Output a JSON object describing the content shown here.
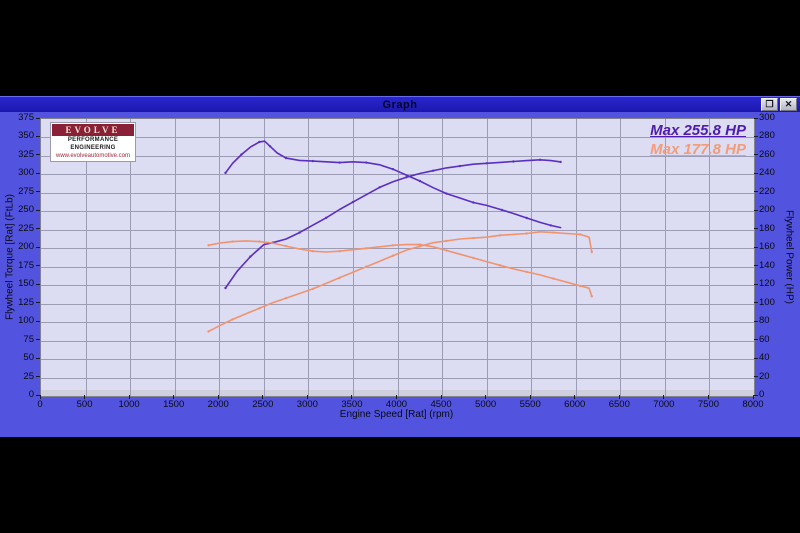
{
  "window": {
    "title": "Graph",
    "icons": {
      "restore": "❐",
      "close": "✕"
    }
  },
  "logo": {
    "brand": "EVOLVE",
    "line1": "PERFORMANCE ENGINEERING",
    "line2": "www.evolveautomotive.com"
  },
  "colors": {
    "titlebar": "#1a17ae",
    "body_bg": "#5254df",
    "plot_bg": "#dcdcf2",
    "grid": "#9c9cb4",
    "purple": "#5b2fc0",
    "orange": "#f09470",
    "legend_purple": "#4f1dae",
    "legend_orange": "#f49c79",
    "logo_maroon": "#8a2038"
  },
  "chart_data": {
    "type": "line",
    "title": "Graph",
    "xlabel": "Engine Speed [Rat] (rpm)",
    "ylabel_left": "Flywheel Torque [Rat] (FtLb)",
    "ylabel_right": "Flywheel Power (HP)",
    "x_range": [
      0,
      8000
    ],
    "y_left_range": [
      0,
      375
    ],
    "y_right_range": [
      0,
      300
    ],
    "grid": true,
    "x_ticks": [
      0,
      500,
      1000,
      1500,
      2000,
      2500,
      3000,
      3500,
      4000,
      4500,
      5000,
      5500,
      6000,
      6500,
      7000,
      7500,
      8000
    ],
    "y_left_ticks": [
      0,
      25,
      50,
      75,
      100,
      125,
      150,
      175,
      200,
      225,
      250,
      275,
      300,
      325,
      350,
      375
    ],
    "y_right_ticks": [
      0,
      20,
      40,
      60,
      80,
      100,
      120,
      140,
      160,
      180,
      200,
      220,
      240,
      260,
      280,
      300
    ],
    "legend": [
      {
        "label": "Max 255.8 HP",
        "color": "#4f1dae"
      },
      {
        "label": "Max 177.8 HP",
        "color": "#f49c79"
      }
    ],
    "series": [
      {
        "name": "run1-torque",
        "axis": "left",
        "color": "#5b2fc0",
        "markers": true,
        "points": [
          [
            2070,
            302
          ],
          [
            2150,
            315
          ],
          [
            2250,
            327
          ],
          [
            2350,
            337
          ],
          [
            2450,
            344
          ],
          [
            2510,
            345
          ],
          [
            2570,
            338
          ],
          [
            2650,
            329
          ],
          [
            2750,
            322
          ],
          [
            2900,
            319
          ],
          [
            3050,
            318
          ],
          [
            3200,
            317
          ],
          [
            3350,
            316
          ],
          [
            3500,
            317
          ],
          [
            3650,
            316
          ],
          [
            3800,
            313
          ],
          [
            3950,
            307
          ],
          [
            4100,
            299
          ],
          [
            4250,
            291
          ],
          [
            4400,
            282
          ],
          [
            4550,
            274
          ],
          [
            4700,
            268
          ],
          [
            4850,
            262
          ],
          [
            5000,
            258
          ],
          [
            5170,
            252
          ],
          [
            5300,
            247
          ],
          [
            5450,
            241
          ],
          [
            5600,
            235
          ],
          [
            5720,
            231
          ],
          [
            5830,
            228
          ]
        ]
      },
      {
        "name": "run1-power",
        "axis": "right",
        "color": "#5b2fc0",
        "markers": true,
        "points": [
          [
            2070,
            117
          ],
          [
            2200,
            135
          ],
          [
            2350,
            151
          ],
          [
            2500,
            164
          ],
          [
            2600,
            166
          ],
          [
            2750,
            170
          ],
          [
            2900,
            177
          ],
          [
            3050,
            185
          ],
          [
            3200,
            193
          ],
          [
            3350,
            202
          ],
          [
            3500,
            210
          ],
          [
            3650,
            218
          ],
          [
            3800,
            226
          ],
          [
            3950,
            232
          ],
          [
            4100,
            237
          ],
          [
            4250,
            241
          ],
          [
            4400,
            244
          ],
          [
            4550,
            247
          ],
          [
            4700,
            249
          ],
          [
            4850,
            251
          ],
          [
            5000,
            252
          ],
          [
            5150,
            253
          ],
          [
            5300,
            254
          ],
          [
            5450,
            255
          ],
          [
            5600,
            255.8
          ],
          [
            5720,
            255
          ],
          [
            5830,
            253.5
          ]
        ]
      },
      {
        "name": "run2-torque",
        "axis": "left",
        "color": "#f09470",
        "markers": true,
        "points": [
          [
            1880,
            204
          ],
          [
            2000,
            207
          ],
          [
            2150,
            209
          ],
          [
            2300,
            210
          ],
          [
            2450,
            209
          ],
          [
            2600,
            207
          ],
          [
            2750,
            203
          ],
          [
            2900,
            199
          ],
          [
            3050,
            196
          ],
          [
            3200,
            195
          ],
          [
            3350,
            196
          ],
          [
            3500,
            198
          ],
          [
            3650,
            200
          ],
          [
            3800,
            202
          ],
          [
            3950,
            204
          ],
          [
            4100,
            205
          ],
          [
            4250,
            205
          ],
          [
            4400,
            202
          ],
          [
            4550,
            197
          ],
          [
            4700,
            192
          ],
          [
            4850,
            187
          ],
          [
            5000,
            182
          ],
          [
            5150,
            177
          ],
          [
            5300,
            172
          ],
          [
            5450,
            168
          ],
          [
            5600,
            164
          ],
          [
            5750,
            159
          ],
          [
            5900,
            154
          ],
          [
            6050,
            149
          ],
          [
            6150,
            146
          ],
          [
            6180,
            135
          ]
        ]
      },
      {
        "name": "run2-power",
        "axis": "right",
        "color": "#f09470",
        "markers": true,
        "points": [
          [
            1880,
            70
          ],
          [
            2000,
            76
          ],
          [
            2150,
            83
          ],
          [
            2300,
            89
          ],
          [
            2450,
            95
          ],
          [
            2600,
            101
          ],
          [
            2750,
            106
          ],
          [
            2900,
            111
          ],
          [
            3050,
            116
          ],
          [
            3200,
            122
          ],
          [
            3350,
            128
          ],
          [
            3500,
            134
          ],
          [
            3650,
            140
          ],
          [
            3800,
            146
          ],
          [
            3950,
            152
          ],
          [
            4100,
            158
          ],
          [
            4250,
            162
          ],
          [
            4400,
            166
          ],
          [
            4550,
            168
          ],
          [
            4700,
            170
          ],
          [
            4850,
            171
          ],
          [
            5000,
            172
          ],
          [
            5150,
            174
          ],
          [
            5300,
            175
          ],
          [
            5450,
            176
          ],
          [
            5600,
            177.8
          ],
          [
            5750,
            177
          ],
          [
            5900,
            176
          ],
          [
            6050,
            175
          ],
          [
            6150,
            172
          ],
          [
            6180,
            156
          ]
        ]
      }
    ]
  }
}
